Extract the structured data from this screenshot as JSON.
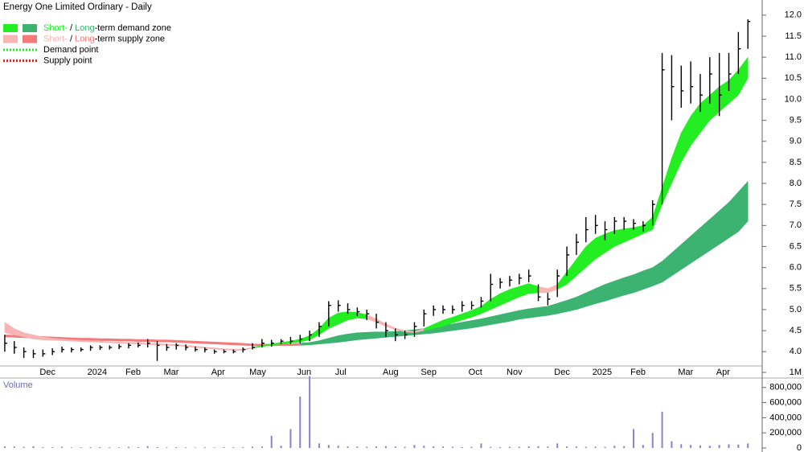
{
  "chart_data": [
    {
      "type": "ohlc",
      "title": "Energy One Limited Ordinary - Daily",
      "legend": [
        {
          "swatches": [
            "#22ee22",
            "#3cb371"
          ],
          "parts": [
            {
              "text": "Short-",
              "color": "#22ee22"
            },
            {
              "text": " / "
            },
            {
              "text": "Long",
              "color": "#3cb371"
            },
            {
              "text": "-term demand zone"
            }
          ]
        },
        {
          "swatches": [
            "#f9b4b4",
            "#f47a7a"
          ],
          "parts": [
            {
              "text": "Short-",
              "color": "#f9b4b4"
            },
            {
              "text": " / "
            },
            {
              "text": "Long",
              "color": "#f47a7a"
            },
            {
              "text": "-term supply zone"
            }
          ]
        },
        {
          "dotted": "#22ee22",
          "parts": [
            {
              "text": "Demand point"
            }
          ]
        },
        {
          "dotted": "#e02020",
          "parts": [
            {
              "text": "Supply point"
            }
          ]
        }
      ],
      "categories": [
        null,
        null,
        null,
        null,
        "Dec",
        null,
        null,
        null,
        null,
        "2024",
        null,
        null,
        null,
        "Feb",
        null,
        null,
        null,
        "Mar",
        null,
        null,
        null,
        null,
        "Apr",
        null,
        null,
        null,
        "May",
        null,
        null,
        null,
        null,
        "Jun",
        null,
        null,
        null,
        "Jul",
        null,
        null,
        null,
        null,
        "Aug",
        null,
        null,
        null,
        "Sep",
        null,
        null,
        null,
        null,
        "Oct",
        null,
        null,
        null,
        "Nov",
        null,
        null,
        null,
        null,
        "Dec",
        null,
        null,
        null,
        "2025",
        null,
        null,
        null,
        "Feb",
        null,
        null,
        null,
        null,
        "Mar",
        null,
        null,
        null,
        "Apr",
        null,
        null,
        null
      ],
      "close": [
        4.2,
        4.1,
        4.0,
        3.95,
        3.95,
        4.0,
        4.05,
        4.05,
        4.05,
        4.1,
        4.1,
        4.1,
        4.12,
        4.15,
        4.15,
        4.2,
        4.15,
        4.1,
        4.15,
        4.1,
        4.05,
        4.05,
        4.0,
        4.0,
        4.0,
        4.05,
        4.1,
        4.2,
        4.2,
        4.25,
        4.25,
        4.3,
        4.4,
        4.6,
        5.1,
        5.1,
        5.0,
        4.95,
        4.9,
        4.7,
        4.5,
        4.4,
        4.4,
        4.6,
        4.9,
        5.0,
        5.0,
        5.0,
        5.1,
        5.1,
        5.2,
        5.6,
        5.65,
        5.7,
        5.75,
        5.8,
        5.3,
        5.25,
        5.8,
        6.3,
        6.6,
        6.9,
        7.0,
        6.9,
        7.1,
        7.1,
        7.05,
        7.0,
        7.5,
        10.7,
        10.3,
        10.2,
        10.3,
        10.1,
        10.6,
        10.1,
        10.6,
        11.2,
        11.85
      ],
      "high": [
        4.4,
        4.25,
        4.1,
        4.05,
        4.05,
        4.08,
        4.12,
        4.1,
        4.1,
        4.15,
        4.15,
        4.15,
        4.18,
        4.2,
        4.22,
        4.3,
        4.25,
        4.18,
        4.2,
        4.17,
        4.12,
        4.1,
        4.05,
        4.05,
        4.05,
        4.1,
        4.2,
        4.3,
        4.28,
        4.3,
        4.35,
        4.4,
        4.5,
        4.7,
        5.2,
        5.22,
        5.15,
        5.05,
        5.0,
        4.9,
        4.7,
        4.55,
        4.5,
        4.7,
        5.0,
        5.1,
        5.1,
        5.1,
        5.2,
        5.2,
        5.3,
        5.85,
        5.75,
        5.8,
        5.85,
        5.95,
        5.6,
        5.4,
        5.95,
        6.5,
        6.8,
        7.2,
        7.25,
        7.1,
        7.2,
        7.2,
        7.15,
        7.1,
        7.6,
        11.1,
        11.05,
        10.8,
        10.9,
        10.6,
        11.0,
        11.1,
        11.1,
        11.6,
        11.9
      ],
      "low": [
        4.0,
        3.95,
        3.85,
        3.85,
        3.88,
        3.92,
        3.98,
        3.98,
        4.0,
        4.02,
        4.04,
        4.05,
        4.06,
        4.08,
        4.1,
        4.1,
        3.78,
        4.02,
        4.05,
        4.03,
        4.0,
        3.98,
        3.95,
        3.96,
        3.96,
        3.98,
        4.05,
        4.1,
        4.12,
        4.18,
        4.18,
        4.2,
        4.25,
        4.35,
        4.6,
        4.95,
        4.9,
        4.85,
        4.75,
        4.55,
        4.35,
        4.25,
        4.3,
        4.35,
        4.6,
        4.85,
        4.9,
        4.9,
        4.95,
        5.0,
        5.05,
        5.2,
        5.5,
        5.55,
        5.6,
        5.65,
        5.2,
        5.1,
        5.3,
        5.8,
        6.3,
        6.6,
        6.8,
        6.65,
        6.8,
        6.9,
        6.9,
        6.85,
        7.0,
        7.5,
        9.5,
        9.8,
        9.9,
        9.7,
        9.9,
        9.6,
        10.2,
        10.6,
        11.2
      ],
      "bands": [
        {
          "swatch": 1,
          "zone": [
            "s",
            "s",
            "s",
            "s",
            "s",
            "s",
            "s",
            "s",
            "s",
            "s",
            "s",
            "s",
            "s",
            "s",
            "s",
            "s",
            "s",
            "s",
            "s",
            "s",
            "s",
            "s",
            "s",
            "s",
            "s",
            "s",
            "s",
            "s",
            "s",
            "s",
            "s",
            "d",
            "d",
            "d",
            "d",
            "d",
            "d",
            "d",
            "d",
            "d",
            "d",
            "d",
            "d",
            "d",
            "d",
            "d",
            "d",
            "d",
            "d",
            "d",
            "d",
            "d",
            "d",
            "d",
            "d",
            "d",
            "d",
            "d",
            "d",
            "d",
            "d",
            "d",
            "d",
            "d",
            "d",
            "d",
            "d",
            "d",
            "d",
            "d",
            "d",
            "d",
            "d",
            "d",
            "d",
            "d",
            "d",
            "d",
            "d"
          ],
          "lower": [
            4.35,
            4.34,
            4.33,
            4.32,
            4.31,
            4.3,
            4.29,
            4.28,
            4.27,
            4.27,
            4.26,
            4.26,
            4.25,
            4.25,
            4.24,
            4.24,
            4.23,
            4.23,
            4.22,
            4.21,
            4.2,
            4.19,
            4.18,
            4.17,
            4.16,
            4.15,
            4.14,
            4.14,
            4.14,
            4.14,
            4.14,
            4.15,
            4.16,
            4.18,
            4.2,
            4.22,
            4.25,
            4.28,
            4.3,
            4.32,
            4.34,
            4.36,
            4.38,
            4.4,
            4.42,
            4.44,
            4.47,
            4.5,
            4.53,
            4.56,
            4.6,
            4.64,
            4.68,
            4.72,
            4.77,
            4.8,
            4.83,
            4.86,
            4.9,
            4.95,
            5.0,
            5.07,
            5.14,
            5.2,
            5.27,
            5.34,
            5.4,
            5.48,
            5.56,
            5.65,
            5.8,
            5.95,
            6.1,
            6.25,
            6.4,
            6.55,
            6.7,
            6.85,
            7.1
          ],
          "upper": [
            4.4,
            4.39,
            4.38,
            4.37,
            4.36,
            4.35,
            4.34,
            4.33,
            4.32,
            4.32,
            4.31,
            4.31,
            4.3,
            4.3,
            4.29,
            4.29,
            4.28,
            4.28,
            4.27,
            4.26,
            4.25,
            4.24,
            4.23,
            4.22,
            4.21,
            4.2,
            4.18,
            4.18,
            4.18,
            4.18,
            4.18,
            4.2,
            4.22,
            4.26,
            4.32,
            4.38,
            4.42,
            4.45,
            4.46,
            4.47,
            4.47,
            4.48,
            4.5,
            4.52,
            4.55,
            4.58,
            4.62,
            4.66,
            4.7,
            4.74,
            4.78,
            4.83,
            4.88,
            4.93,
            4.98,
            5.02,
            5.05,
            5.08,
            5.15,
            5.22,
            5.3,
            5.4,
            5.5,
            5.6,
            5.68,
            5.76,
            5.83,
            5.92,
            6.0,
            6.15,
            6.35,
            6.55,
            6.75,
            6.95,
            7.15,
            7.35,
            7.55,
            7.8,
            8.05
          ]
        },
        {
          "swatch": 0,
          "zone": [
            "s",
            "s",
            "s",
            "s",
            "s",
            "s",
            "s",
            "s",
            "s",
            "s",
            "s",
            "s",
            "s",
            "s",
            "s",
            "s",
            "s",
            "s",
            "s",
            "s",
            "s",
            "s",
            "s",
            "s",
            "s",
            "s",
            "d",
            "d",
            "d",
            "d",
            "d",
            "d",
            "d",
            "d",
            "d",
            "d",
            "d",
            "d",
            "s",
            "s",
            "s",
            "s",
            "s",
            "s",
            "d",
            "d",
            "d",
            "d",
            "d",
            "d",
            "d",
            "d",
            "d",
            "d",
            "d",
            "d",
            "s",
            "s",
            "d",
            "d",
            "d",
            "d",
            "d",
            "d",
            "d",
            "d",
            "d",
            "d",
            "d",
            "d",
            "d",
            "d",
            "d",
            "d",
            "d",
            "d",
            "d",
            "d",
            "d"
          ],
          "lower": [
            4.45,
            4.4,
            4.35,
            4.3,
            4.28,
            4.27,
            4.26,
            4.25,
            4.24,
            4.23,
            4.22,
            4.21,
            4.2,
            4.19,
            4.18,
            4.17,
            4.16,
            4.15,
            4.14,
            4.12,
            4.1,
            4.08,
            4.06,
            4.04,
            4.03,
            4.03,
            4.08,
            4.12,
            4.15,
            4.18,
            4.2,
            4.23,
            4.28,
            4.4,
            4.55,
            4.65,
            4.75,
            4.8,
            4.78,
            4.7,
            4.6,
            4.52,
            4.47,
            4.45,
            4.5,
            4.55,
            4.6,
            4.68,
            4.75,
            4.82,
            4.9,
            5.0,
            5.1,
            5.2,
            5.3,
            5.38,
            5.4,
            5.4,
            5.48,
            5.6,
            5.8,
            6.0,
            6.2,
            6.35,
            6.5,
            6.6,
            6.7,
            6.8,
            6.9,
            7.5,
            8.0,
            8.5,
            8.9,
            9.2,
            9.5,
            9.7,
            9.9,
            10.1,
            10.5
          ],
          "upper": [
            4.7,
            4.55,
            4.45,
            4.4,
            4.35,
            4.32,
            4.3,
            4.28,
            4.27,
            4.26,
            4.25,
            4.24,
            4.23,
            4.22,
            4.21,
            4.2,
            4.19,
            4.18,
            4.17,
            4.15,
            4.13,
            4.11,
            4.09,
            4.07,
            4.06,
            4.06,
            4.1,
            4.15,
            4.18,
            4.22,
            4.25,
            4.3,
            4.38,
            4.55,
            4.8,
            4.92,
            4.95,
            4.93,
            4.88,
            4.78,
            4.66,
            4.56,
            4.5,
            4.48,
            4.55,
            4.65,
            4.75,
            4.82,
            4.9,
            4.98,
            5.08,
            5.25,
            5.38,
            5.48,
            5.55,
            5.62,
            5.55,
            5.5,
            5.6,
            5.9,
            6.2,
            6.5,
            6.7,
            6.8,
            6.88,
            6.92,
            6.95,
            7.0,
            7.2,
            7.9,
            8.6,
            9.2,
            9.6,
            9.9,
            10.1,
            10.3,
            10.45,
            10.7,
            11.0
          ]
        }
      ],
      "color": "#000000",
      "ylim": [
        3.66,
        12.36
      ],
      "yticks": [
        {
          "value": 4,
          "label": "4.0"
        },
        4.5,
        {
          "value": 5,
          "label": "5.0"
        },
        5.5,
        {
          "value": 6,
          "label": "6.0"
        },
        6.5,
        {
          "value": 7,
          "label": "7.0"
        },
        7.5,
        {
          "value": 8,
          "label": "8.0"
        },
        8.5,
        {
          "value": 9,
          "label": "9.0"
        },
        9.5,
        {
          "value": 10,
          "label": "10.0"
        },
        10.5,
        {
          "value": 11,
          "label": "11.0"
        },
        11.5,
        {
          "value": 12,
          "label": "12.0"
        }
      ]
    },
    {
      "type": "bar",
      "title": "Volume",
      "color": "#8585cc",
      "values": [
        20000,
        18000,
        15000,
        22000,
        12000,
        10000,
        15000,
        8000,
        9000,
        11000,
        12000,
        10000,
        9000,
        14000,
        10000,
        25000,
        12000,
        9000,
        10000,
        8000,
        7000,
        9000,
        8000,
        10000,
        9000,
        12000,
        15000,
        18000,
        160000,
        30000,
        250000,
        680000,
        950000,
        60000,
        40000,
        30000,
        20000,
        18000,
        15000,
        20000,
        25000,
        18000,
        15000,
        40000,
        30000,
        20000,
        18000,
        15000,
        12000,
        14000,
        60000,
        15000,
        12000,
        14000,
        16000,
        20000,
        25000,
        18000,
        60000,
        20000,
        18000,
        15000,
        16000,
        14000,
        30000,
        25000,
        250000,
        40000,
        200000,
        480000,
        90000,
        50000,
        40000,
        35000,
        30000,
        40000,
        50000,
        45000,
        60000
      ],
      "ylim": [
        -32000,
        1021000
      ],
      "yticks": [
        0,
        {
          "value": 200000,
          "label": "200,000"
        },
        {
          "value": 400000,
          "label": "400,000"
        },
        {
          "value": 600000,
          "label": "600,000"
        },
        {
          "value": 800000,
          "label": "800,000"
        },
        {
          "value": 1000000,
          "label": "1M"
        }
      ]
    }
  ]
}
